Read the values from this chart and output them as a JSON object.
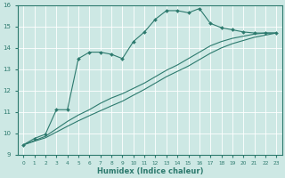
{
  "xlabel": "Humidex (Indice chaleur)",
  "bg_color": "#cde8e4",
  "line_color": "#2d7a6e",
  "grid_color": "#ffffff",
  "xlim": [
    -0.5,
    23.5
  ],
  "ylim": [
    9,
    16
  ],
  "xticks": [
    0,
    1,
    2,
    3,
    4,
    5,
    6,
    7,
    8,
    9,
    10,
    11,
    12,
    13,
    14,
    15,
    16,
    17,
    18,
    19,
    20,
    21,
    22,
    23
  ],
  "yticks": [
    9,
    10,
    11,
    12,
    13,
    14,
    15,
    16
  ],
  "curve1_x": [
    0,
    1,
    2,
    3,
    4,
    5,
    6,
    7,
    8,
    9,
    10,
    11,
    12,
    13,
    14,
    15,
    16,
    17,
    18,
    19,
    20,
    21,
    22,
    23
  ],
  "curve1_y": [
    9.45,
    9.75,
    9.95,
    11.1,
    11.1,
    13.5,
    13.8,
    13.8,
    13.7,
    13.5,
    14.3,
    14.75,
    15.35,
    15.75,
    15.75,
    15.65,
    15.85,
    15.15,
    14.95,
    14.85,
    14.75,
    14.7,
    14.7,
    14.7
  ],
  "curve2_x": [
    0,
    1,
    2,
    3,
    4,
    5,
    6,
    7,
    8,
    9,
    10,
    11,
    12,
    13,
    14,
    15,
    16,
    17,
    18,
    19,
    20,
    21,
    22,
    23
  ],
  "curve2_y": [
    9.45,
    9.65,
    9.85,
    10.2,
    10.55,
    10.85,
    11.1,
    11.4,
    11.65,
    11.85,
    12.1,
    12.35,
    12.65,
    12.95,
    13.2,
    13.5,
    13.8,
    14.1,
    14.3,
    14.45,
    14.55,
    14.65,
    14.7,
    14.7
  ],
  "curve3_x": [
    0,
    1,
    2,
    3,
    4,
    5,
    6,
    7,
    8,
    9,
    10,
    11,
    12,
    13,
    14,
    15,
    16,
    17,
    18,
    19,
    20,
    21,
    22,
    23
  ],
  "curve3_y": [
    9.45,
    9.62,
    9.78,
    10.05,
    10.32,
    10.58,
    10.82,
    11.05,
    11.28,
    11.5,
    11.78,
    12.05,
    12.35,
    12.65,
    12.9,
    13.15,
    13.45,
    13.75,
    14.0,
    14.2,
    14.35,
    14.5,
    14.6,
    14.7
  ]
}
